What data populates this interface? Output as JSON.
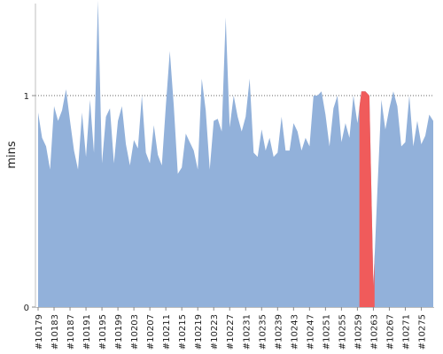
{
  "chart_data": {
    "type": "area",
    "title": "",
    "xlabel": "",
    "ylabel": "mins",
    "ylim": [
      0,
      1.45
    ],
    "y_ticks": [
      0,
      1
    ],
    "grid": "dotted reference line at y=1",
    "colors": {
      "area": "#92b1da",
      "highlight": "#f05b5b",
      "gridline": "#666666",
      "axis": "#bfbfbf"
    },
    "x_tick_labels": [
      "#10179",
      "#10183",
      "#10187",
      "#10191",
      "#10195",
      "#10199",
      "#10203",
      "#10207",
      "#10211",
      "#10215",
      "#10219",
      "#10223",
      "#10227",
      "#10231",
      "#10235",
      "#10239",
      "#10243",
      "#10247",
      "#10251",
      "#10255",
      "#10259",
      "#10263",
      "#10267",
      "#10271",
      "#10275"
    ],
    "series": [
      {
        "x": [
          10179,
          10180,
          10181,
          10182,
          10183,
          10184,
          10185,
          10186,
          10187,
          10188,
          10189,
          10190,
          10191,
          10192,
          10193,
          10194,
          10195,
          10196,
          10197,
          10198,
          10199,
          10200,
          10201,
          10202,
          10203,
          10204,
          10205,
          10206,
          10207,
          10208,
          10209,
          10210,
          10211,
          10212,
          10213,
          10214,
          10215,
          10216,
          10217,
          10218,
          10219,
          10220,
          10221,
          10222,
          10223,
          10224,
          10225,
          10226,
          10227,
          10228,
          10229,
          10230,
          10231,
          10232,
          10233,
          10234,
          10235,
          10236,
          10237,
          10238,
          10239,
          10240,
          10241,
          10242,
          10243,
          10244,
          10245,
          10246,
          10247,
          10248,
          10249,
          10250,
          10251,
          10252,
          10253,
          10254,
          10255,
          10256,
          10257,
          10258,
          10259,
          10260,
          10261,
          10262,
          10263,
          10264,
          10265,
          10266,
          10267,
          10268,
          10269,
          10270,
          10271,
          10272,
          10273,
          10274,
          10275,
          10276,
          10277,
          10278
        ],
        "values": [
          0.92,
          0.8,
          0.76,
          0.65,
          0.95,
          0.88,
          0.93,
          1.03,
          0.88,
          0.74,
          0.65,
          0.92,
          0.71,
          0.98,
          0.73,
          1.45,
          0.68,
          0.9,
          0.94,
          0.68,
          0.88,
          0.95,
          0.77,
          0.67,
          0.79,
          0.75,
          1.0,
          0.73,
          0.68,
          0.86,
          0.72,
          0.67,
          0.95,
          1.21,
          0.95,
          0.63,
          0.66,
          0.82,
          0.78,
          0.74,
          0.65,
          1.08,
          0.93,
          0.65,
          0.88,
          0.89,
          0.83,
          1.37,
          0.85,
          1.0,
          0.9,
          0.83,
          0.9,
          1.08,
          0.73,
          0.71,
          0.84,
          0.74,
          0.8,
          0.71,
          0.73,
          0.9,
          0.74,
          0.74,
          0.87,
          0.83,
          0.74,
          0.8,
          0.76,
          1.0,
          1.0,
          1.02,
          0.91,
          0.76,
          0.94,
          1.0,
          0.78,
          0.87,
          0.8,
          1.0,
          0.87,
          1.02,
          1.02,
          1.0,
          0.1,
          0.55,
          0.98,
          0.84,
          0.94,
          1.02,
          0.95,
          0.76,
          0.78,
          1.0,
          0.76,
          0.88,
          0.77,
          0.81,
          0.91,
          0.88
        ]
      }
    ],
    "highlight": {
      "from_x": 10259.5,
      "to_x": 10263.3,
      "color": "#f05b5b"
    }
  }
}
